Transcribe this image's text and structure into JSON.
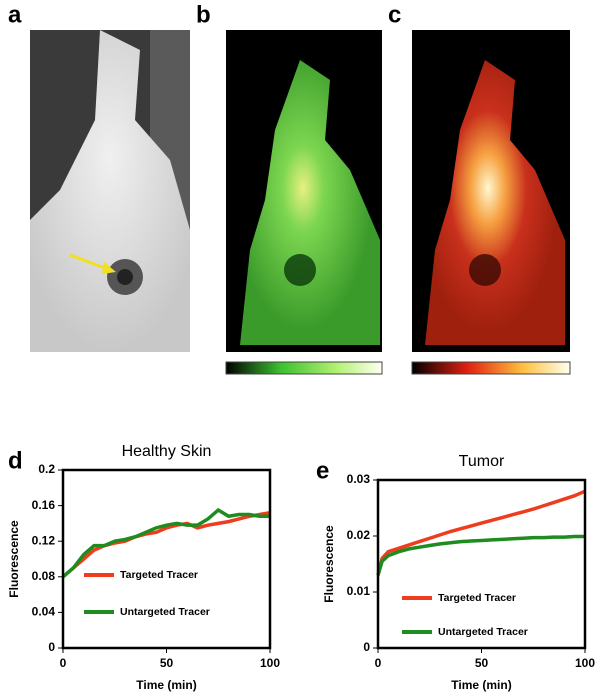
{
  "panel_labels": [
    "a",
    "b",
    "c"
  ],
  "chart_data": [
    {
      "type": "line",
      "panel_label": "d",
      "title": "Healthy Skin",
      "x_label": "Time (min)",
      "y_label": "Fluorescence",
      "x": [
        0,
        5,
        10,
        15,
        20,
        25,
        30,
        35,
        40,
        45,
        50,
        55,
        60,
        65,
        70,
        75,
        80,
        85,
        90,
        95,
        100
      ],
      "series": [
        {
          "name": "Targeted Tracer",
          "color": "#f03c1e",
          "values": [
            0.08,
            0.09,
            0.1,
            0.11,
            0.115,
            0.118,
            0.12,
            0.125,
            0.128,
            0.13,
            0.135,
            0.138,
            0.14,
            0.135,
            0.138,
            0.14,
            0.142,
            0.145,
            0.148,
            0.15,
            0.152
          ]
        },
        {
          "name": "Untargeted Tracer",
          "color": "#1e8c1e",
          "values": [
            0.08,
            0.09,
            0.105,
            0.115,
            0.115,
            0.12,
            0.122,
            0.125,
            0.13,
            0.135,
            0.138,
            0.14,
            0.138,
            0.138,
            0.145,
            0.155,
            0.148,
            0.15,
            0.15,
            0.148,
            0.148
          ]
        }
      ],
      "xlim": [
        0,
        100
      ],
      "xticks": [
        0,
        50,
        100
      ],
      "ylim": [
        0,
        0.2
      ],
      "yticks": [
        0,
        0.04,
        0.08,
        0.12,
        0.16,
        0.2
      ]
    },
    {
      "type": "line",
      "panel_label": "e",
      "title": "Tumor",
      "x_label": "Time (min)",
      "y_label": "Fluorescence",
      "x": [
        0,
        2,
        5,
        10,
        15,
        20,
        25,
        30,
        35,
        40,
        45,
        50,
        55,
        60,
        65,
        70,
        75,
        80,
        85,
        90,
        95,
        100
      ],
      "series": [
        {
          "name": "Targeted Tracer",
          "color": "#f03c1e",
          "values": [
            0.013,
            0.016,
            0.0172,
            0.0178,
            0.0184,
            0.019,
            0.0196,
            0.0202,
            0.0208,
            0.0213,
            0.0218,
            0.0223,
            0.0228,
            0.0233,
            0.0238,
            0.0243,
            0.0248,
            0.0254,
            0.026,
            0.0266,
            0.0272,
            0.028
          ]
        },
        {
          "name": "Untargeted Tracer",
          "color": "#1e8c1e",
          "values": [
            0.013,
            0.0155,
            0.0165,
            0.0172,
            0.0177,
            0.018,
            0.0183,
            0.0186,
            0.0188,
            0.019,
            0.0191,
            0.0192,
            0.0193,
            0.0194,
            0.0195,
            0.0196,
            0.0197,
            0.0197,
            0.0198,
            0.0198,
            0.0199,
            0.0199
          ]
        }
      ],
      "xlim": [
        0,
        100
      ],
      "xticks": [
        0,
        50,
        100
      ],
      "ylim": [
        0,
        0.03
      ],
      "yticks": [
        0,
        0.01,
        0.02,
        0.03
      ]
    }
  ]
}
